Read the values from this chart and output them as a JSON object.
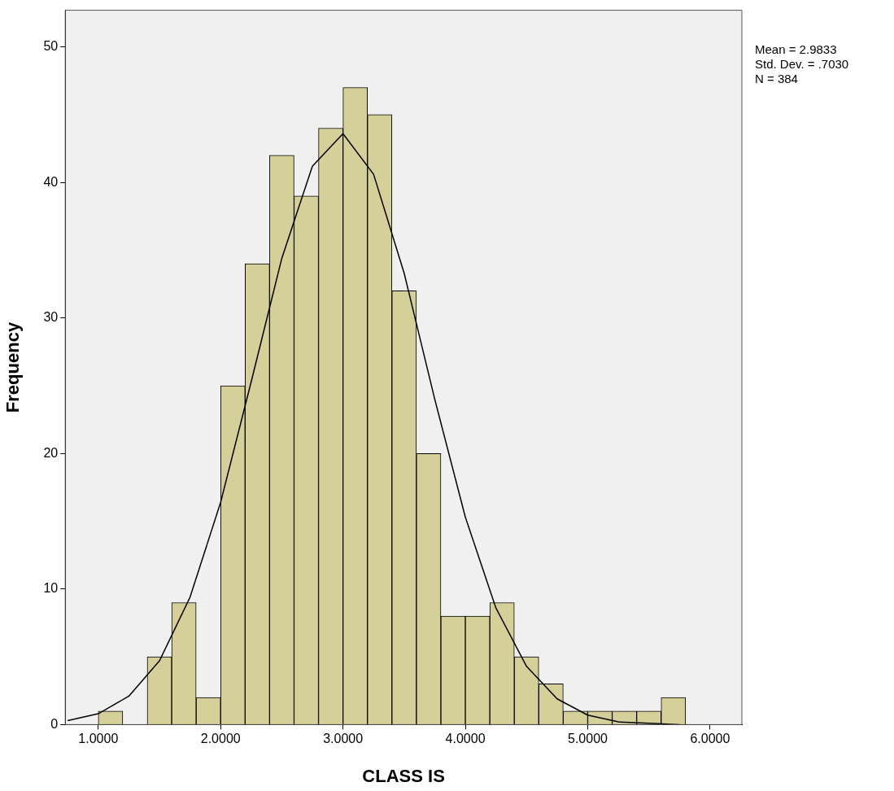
{
  "chart_data": {
    "type": "histogram",
    "xlabel": "CLASS IS",
    "ylabel": "Frequency",
    "bins": [
      1.0,
      1.2,
      1.4,
      1.6,
      1.8,
      2.0,
      2.2,
      2.4,
      2.6,
      2.8,
      3.0,
      3.2,
      3.4,
      3.6,
      3.8,
      4.0,
      4.2,
      4.4,
      4.6,
      4.8,
      5.0,
      5.2,
      5.4,
      5.6,
      5.8
    ],
    "values": [
      1,
      0,
      5,
      9,
      2,
      25,
      34,
      42,
      39,
      44,
      47,
      45,
      32,
      20,
      8,
      8,
      9,
      5,
      3,
      1,
      1,
      1,
      1,
      2
    ],
    "color": "#d5cf99",
    "series": [
      {
        "type": "line",
        "color": "#000000",
        "x": [
          0.75,
          1.0,
          1.25,
          1.5,
          1.75,
          2.0,
          2.25,
          2.5,
          2.75,
          3.0,
          3.25,
          3.5,
          3.75,
          4.0,
          4.25,
          4.5,
          4.75,
          5.0,
          5.25,
          5.5,
          5.75
        ],
        "values": [
          0.3,
          0.8,
          2.1,
          4.7,
          9.4,
          16.4,
          25.3,
          34.4,
          41.2,
          43.6,
          40.6,
          33.3,
          24.0,
          15.3,
          8.6,
          4.3,
          1.9,
          0.7,
          0.2,
          0.1,
          0.0
        ]
      }
    ],
    "xlim": [
      0.73,
      6.26
    ],
    "ylim": [
      0,
      52.7
    ],
    "xticks": [
      {
        "value": 1,
        "label": "1.0000"
      },
      {
        "value": 2,
        "label": "2.0000"
      },
      {
        "value": 3,
        "label": "3.0000"
      },
      {
        "value": 4,
        "label": "4.0000"
      },
      {
        "value": 5,
        "label": "5.0000"
      },
      {
        "value": 6,
        "label": "6.0000"
      }
    ],
    "yticks": [
      0,
      10,
      20,
      30,
      40,
      50
    ],
    "annotations": [
      "Mean = 2.9833",
      "Std. Dev. = .7030",
      "N = 384"
    ],
    "grid": false,
    "legend": false,
    "marker": "none",
    "line_style": "solid"
  }
}
